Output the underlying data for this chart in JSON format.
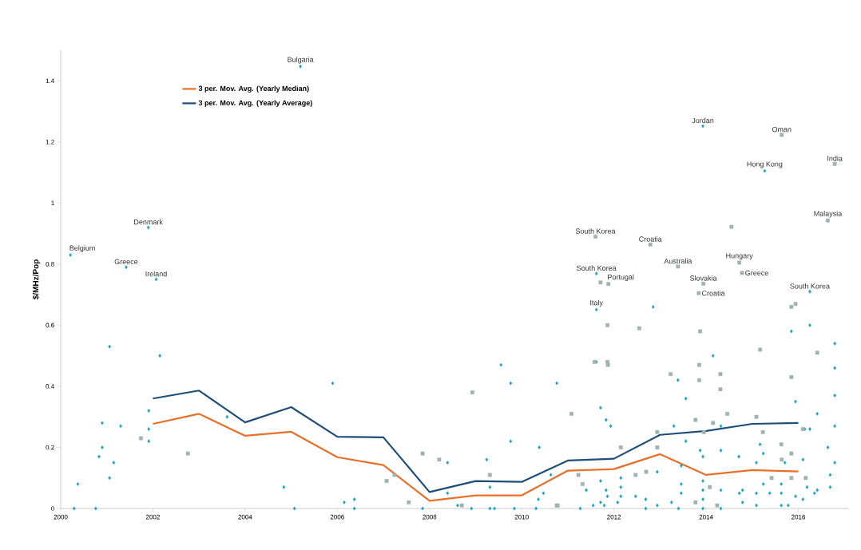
{
  "chart_data": {
    "type": "scatter",
    "ylabel": "$/MHz/Pop",
    "xlim": [
      2000,
      2017.1
    ],
    "ylim": [
      0,
      1.5
    ],
    "xticks": [
      2000,
      2002,
      2004,
      2006,
      2008,
      2010,
      2012,
      2014,
      2016
    ],
    "yticks": [
      0,
      0.2,
      0.4,
      0.6,
      0.8,
      1,
      1.2,
      1.4
    ],
    "legend": "top left",
    "series": [
      {
        "marker": "diamond",
        "color": "#1ba3c6",
        "x": [
          2000.21,
          2000.37,
          2000.29,
          2000.76,
          2000.9,
          2000.9,
          2000.83,
          2001.06,
          2001.06,
          2001.15,
          2001.3,
          2001.42,
          2001.9,
          2002.07,
          2002.15,
          2001.91,
          2001.91,
          2001.91,
          2003.61,
          2004.84,
          2005.07,
          2005.2,
          2005.9,
          2006.15,
          2006.37,
          2006.37,
          2007.85,
          2008.39,
          2008.39,
          2008.61,
          2008.91,
          2009.24,
          2009.31,
          2009.31,
          2009.41,
          2009.55,
          2009.76,
          2009.76,
          2009.84,
          2010.38,
          2010.47,
          2010.36,
          2010.31,
          2010.76,
          2010.63,
          2011.4,
          2011.27,
          2011.62,
          2011.62,
          2011.62,
          2011.71,
          2011.83,
          2011.93,
          2011.71,
          2011.83,
          2011.86,
          2011.71,
          2011.79,
          2011.55,
          2012.15,
          2012.15,
          2012.15,
          2012.08,
          2012.85,
          2012.47,
          2012.69,
          2012.69,
          2012.94,
          2012.94,
          2013.39,
          2013.56,
          2013.3,
          2013.56,
          2013.46,
          2013.46,
          2013.46,
          2013.25,
          2013.4,
          2013.87,
          2013.93,
          2013.93,
          2013.93,
          2013.93,
          2013.93,
          2013.93,
          2014.15,
          2014.32,
          2014.32,
          2014.32,
          2014.32,
          2014.71,
          2014.72,
          2014.79,
          2014.79,
          2015.17,
          2015.24,
          2015.09,
          2015.24,
          2015.09,
          2015.09,
          2015.38,
          2015.27,
          2015.63,
          2015.63,
          2015.63,
          2015.78,
          2015.85,
          2015.94,
          2015.71,
          2015.94,
          2016.1,
          2016.25,
          2016.41,
          2016.14,
          2016.25,
          2016.19,
          2016.1,
          2016.41,
          2016.35,
          2016.25,
          2016.79,
          2016.79,
          2016.79,
          2016.79,
          2016.79,
          2016.64,
          2016.69,
          2016.69
        ],
        "values": [
          0.83,
          0.08,
          0,
          0,
          0.28,
          0.2,
          0.17,
          0.53,
          0.1,
          0.15,
          0.27,
          0.79,
          0.92,
          0.75,
          0.5,
          0.32,
          0.26,
          0.22,
          0.3,
          0.07,
          0,
          1.447,
          0.41,
          0.02,
          0.03,
          0,
          0,
          0.15,
          0.05,
          0.01,
          0,
          0.16,
          0.07,
          0,
          0,
          0.47,
          0.41,
          0.22,
          0,
          0.2,
          0.05,
          0.03,
          0,
          0.41,
          0.11,
          0.06,
          0,
          0.769,
          0.651,
          0.48,
          0.33,
          0.29,
          0.27,
          0.09,
          0.06,
          0.04,
          0.02,
          0.01,
          0.01,
          0.1,
          0.07,
          0.04,
          0.02,
          0.66,
          0.04,
          0.03,
          0,
          0.01,
          0.12,
          0.42,
          0.36,
          0.27,
          0.22,
          0.14,
          0.08,
          0.05,
          0.02,
          0,
          0.19,
          1.252,
          0.17,
          0.09,
          0.06,
          0.03,
          0,
          0.5,
          0.27,
          0.19,
          0.06,
          0,
          0.17,
          0.05,
          0.06,
          0.02,
          0.21,
          0.18,
          0.15,
          0.08,
          0.05,
          0.01,
          0.05,
          1.105,
          0.08,
          0.05,
          0.01,
          0.01,
          0.58,
          0.35,
          0.15,
          0.04,
          0.16,
          0.6,
          0.31,
          0.26,
          0.26,
          0.07,
          0.03,
          0.06,
          0.05,
          0.71,
          0.54,
          0.46,
          0.37,
          0.27,
          0.15,
          0.2,
          0.11,
          0.07
        ]
      },
      {
        "marker": "square",
        "color": "#9fb3b1",
        "x": [
          2001.74,
          2002.76,
          2007.07,
          2007.24,
          2007.55,
          2007.85,
          2008.21,
          2008.7,
          2008.93,
          2009.31,
          2010.76,
          2011.08,
          2011.23,
          2011.32,
          2010.78,
          2011.6,
          2011.71,
          2011.88,
          2011.86,
          2011.58,
          2011.86,
          2011.87,
          2012.15,
          2012.55,
          2012.79,
          2012.47,
          2012.7,
          2012.94,
          2012.94,
          2013.39,
          2013.23,
          2013.77,
          2013.94,
          2013.84,
          2013.87,
          2013.85,
          2013.85,
          2013.95,
          2013.77,
          2014.08,
          2014.31,
          2014.31,
          2014.15,
          2014.24,
          2014.46,
          2014.55,
          2014.72,
          2014.78,
          2015.17,
          2015.09,
          2015.23,
          2015.42,
          2015.64,
          2015.63,
          2015.64,
          2015.85,
          2015.94,
          2015.85,
          2015.85,
          2015.85,
          2016.41,
          2016.1,
          2016.16,
          2016.79,
          2016.64
        ],
        "values": [
          0.23,
          0.18,
          0.09,
          0.11,
          0.02,
          0.18,
          0.16,
          0.01,
          0.38,
          0.11,
          0.01,
          0.31,
          0.11,
          0.08,
          0.01,
          0.89,
          0.74,
          0.735,
          0.6,
          0.48,
          0.48,
          0.47,
          0.2,
          0.59,
          0.864,
          0.11,
          0.12,
          0.25,
          0.2,
          0.792,
          0.44,
          0.29,
          0.736,
          0.705,
          0.58,
          0.47,
          0.42,
          0.25,
          0.02,
          0.07,
          0.44,
          0.39,
          0.28,
          0.01,
          0.31,
          0.922,
          0.805,
          0.771,
          0.52,
          0.3,
          0.25,
          0.1,
          1.223,
          0.21,
          0.16,
          0.66,
          0.67,
          0.43,
          0.18,
          0.1,
          0.51,
          0.26,
          0.1,
          1.128,
          0.943
        ]
      },
      {
        "type": "line",
        "name": "3 per. Mov. Avg. (Yearly Median)",
        "color": "#e8702a",
        "x": [
          2002,
          2003,
          2004,
          2005,
          2006,
          2007,
          2008,
          2009,
          2010,
          2011,
          2012,
          2013,
          2014,
          2015,
          2016
        ],
        "values": [
          0.277,
          0.31,
          0.238,
          0.251,
          0.168,
          0.142,
          0.025,
          0.043,
          0.043,
          0.124,
          0.129,
          0.178,
          0.11,
          0.126,
          0.121
        ]
      },
      {
        "type": "line",
        "name": "3 per. Mov. Avg. (Yearly Average)",
        "color": "#1f4e79",
        "x": [
          2002,
          2003,
          2004,
          2005,
          2006,
          2007,
          2008,
          2009,
          2010,
          2011,
          2012,
          2013,
          2014,
          2015,
          2016
        ],
        "values": [
          0.36,
          0.386,
          0.282,
          0.332,
          0.235,
          0.233,
          0.054,
          0.09,
          0.087,
          0.157,
          0.163,
          0.241,
          0.254,
          0.277,
          0.28
        ]
      }
    ],
    "annotations": [
      {
        "text": "Belgium",
        "x": 2000.21,
        "y": 0.83
      },
      {
        "text": "Greece",
        "x": 2001.42,
        "y": 0.79
      },
      {
        "text": "Denmark",
        "x": 2001.9,
        "y": 0.92
      },
      {
        "text": "Ireland",
        "x": 2002.07,
        "y": 0.75
      },
      {
        "text": "Bulgaria",
        "x": 2005.2,
        "y": 1.447
      },
      {
        "text": "Jordan",
        "x": 2013.93,
        "y": 1.252
      },
      {
        "text": "Oman",
        "x": 2015.64,
        "y": 1.223
      },
      {
        "text": "Hong Kong",
        "x": 2015.27,
        "y": 1.105
      },
      {
        "text": "India",
        "x": 2016.79,
        "y": 1.128
      },
      {
        "text": "Malaysia",
        "x": 2016.64,
        "y": 0.943
      },
      {
        "text": "South Korea",
        "x": 2011.6,
        "y": 0.89
      },
      {
        "text": "Croatia",
        "x": 2012.79,
        "y": 0.864
      },
      {
        "text": "Australia",
        "x": 2013.39,
        "y": 0.792
      },
      {
        "text": "Hungary",
        "x": 2014.72,
        "y": 0.805
      },
      {
        "text": "South Korea",
        "x": 2011.62,
        "y": 0.769
      },
      {
        "text": "Slovakia",
        "x": 2013.94,
        "y": 0.736
      },
      {
        "text": "Greece",
        "x": 2014.78,
        "y": 0.771
      },
      {
        "text": "Portugal",
        "x": 2011.88,
        "y": 0.735
      },
      {
        "text": "Italy",
        "x": 2011.62,
        "y": 0.651
      },
      {
        "text": "Croatia",
        "x": 2013.84,
        "y": 0.705
      },
      {
        "text": "South Korea",
        "x": 2016.25,
        "y": 0.71
      }
    ]
  }
}
